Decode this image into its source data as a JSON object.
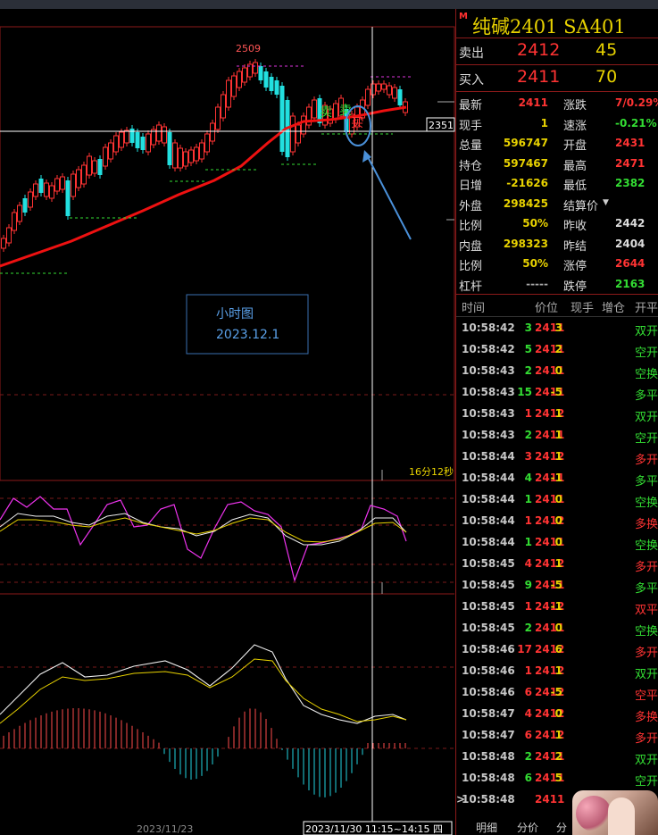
{
  "instrument": {
    "marker": "M",
    "name": "纯碱2401",
    "code": "SA401"
  },
  "order_book": [
    {
      "label": "卖出",
      "price": "2412",
      "volume": "45"
    },
    {
      "label": "买入",
      "price": "2411",
      "volume": "70"
    }
  ],
  "quote": [
    {
      "l1": "最新",
      "v1": "2411",
      "c1": "#ff3333",
      "l2": "涨跌",
      "v2": "7/0.29%",
      "c2": "#ff3333"
    },
    {
      "l1": "现手",
      "v1": "1",
      "c1": "#e8d200",
      "l2": "速涨",
      "v2": "-0.21%",
      "c2": "#33dd33"
    },
    {
      "l1": "总量",
      "v1": "596747",
      "c1": "#e8d200",
      "l2": "开盘",
      "v2": "2431",
      "c2": "#ff3333"
    },
    {
      "l1": "持仓",
      "v1": "597467",
      "c1": "#e8d200",
      "l2": "最高",
      "v2": "2471",
      "c2": "#ff3333"
    },
    {
      "l1": "日增",
      "v1": "-21626",
      "c1": "#e8d200",
      "l2": "最低",
      "v2": "2382",
      "c2": "#33dd33"
    },
    {
      "l1": "外盘",
      "v1": "298425",
      "c1": "#e8d200",
      "l2": "结算价",
      "v2": "",
      "c2": "#ddd"
    },
    {
      "l1": "比例",
      "v1": "50%",
      "c1": "#e8d200",
      "l2": "昨收",
      "v2": "2442",
      "c2": "#dddddd"
    },
    {
      "l1": "内盘",
      "v1": "298323",
      "c1": "#e8d200",
      "l2": "昨结",
      "v2": "2404",
      "c2": "#dddddd"
    },
    {
      "l1": "比例",
      "v1": "50%",
      "c1": "#e8d200",
      "l2": "涨停",
      "v2": "2644",
      "c2": "#ff3333"
    },
    {
      "l1": "杠杆",
      "v1": "-----",
      "c1": "#aaaaaa",
      "l2": "跌停",
      "v2": "2163",
      "c2": "#33dd33"
    }
  ],
  "ticks_header": [
    "时间",
    "价位",
    "现手",
    "增仓",
    "开平"
  ],
  "ticks": [
    {
      "time": "10:58:42",
      "price": "2411",
      "vol": "3",
      "chg": "3",
      "type": "双开"
    },
    {
      "time": "10:58:42",
      "price": "2411",
      "vol": "5",
      "chg": "2",
      "type": "空开"
    },
    {
      "time": "10:58:43",
      "price": "2411",
      "vol": "2",
      "chg": "0",
      "type": "空换"
    },
    {
      "time": "10:58:43",
      "price": "2411",
      "vol": "15",
      "chg": "-5",
      "type": "多平"
    },
    {
      "time": "10:58:43",
      "price": "2412",
      "vol": "1",
      "chg": "1",
      "type": "双开"
    },
    {
      "time": "10:58:43",
      "price": "2411",
      "vol": "2",
      "chg": "1",
      "type": "空开"
    },
    {
      "time": "10:58:44",
      "price": "2412",
      "vol": "3",
      "chg": "1",
      "type": "多开"
    },
    {
      "time": "10:58:44",
      "price": "2411",
      "vol": "4",
      "chg": "-1",
      "type": "多平"
    },
    {
      "time": "10:58:44",
      "price": "2411",
      "vol": "1",
      "chg": "0",
      "type": "空换"
    },
    {
      "time": "10:58:44",
      "price": "2412",
      "vol": "1",
      "chg": "0",
      "type": "多换"
    },
    {
      "time": "10:58:44",
      "price": "2411",
      "vol": "1",
      "chg": "0",
      "type": "空换"
    },
    {
      "time": "10:58:45",
      "price": "2412",
      "vol": "4",
      "chg": "1",
      "type": "多开"
    },
    {
      "time": "10:58:45",
      "price": "2411",
      "vol": "9",
      "chg": "-5",
      "type": "多平"
    },
    {
      "time": "10:58:45",
      "price": "2412",
      "vol": "1",
      "chg": "-1",
      "type": "双平"
    },
    {
      "time": "10:58:45",
      "price": "2411",
      "vol": "2",
      "chg": "0",
      "type": "空换"
    },
    {
      "time": "10:58:46",
      "price": "2412",
      "vol": "17",
      "chg": "6",
      "type": "多开"
    },
    {
      "time": "10:58:46",
      "price": "2412",
      "vol": "1",
      "chg": "1",
      "type": "双开"
    },
    {
      "time": "10:58:46",
      "price": "2412",
      "vol": "6",
      "chg": "-5",
      "type": "空平"
    },
    {
      "time": "10:58:47",
      "price": "2412",
      "vol": "4",
      "chg": "0",
      "type": "多换"
    },
    {
      "time": "10:58:47",
      "price": "2412",
      "vol": "6",
      "chg": "1",
      "type": "多开"
    },
    {
      "time": "10:58:48",
      "price": "2411",
      "vol": "2",
      "chg": "2",
      "type": "双开"
    },
    {
      "time": "10:58:48",
      "price": "2411",
      "vol": "6",
      "chg": "5",
      "type": "空开"
    },
    {
      "time": "10:58:48",
      "price": "2411",
      "vol": "",
      "chg": "",
      "type": ""
    }
  ],
  "tabs": [
    "明细",
    "分价",
    "分"
  ],
  "chart": {
    "high_label": "2509",
    "price_tag": "2351",
    "annotation_title": "小时图",
    "annotation_date": "2023.12.1",
    "countdown": "16分12秒",
    "date_left": "2023/11/23",
    "crosshair_date": "2023/11/30 11:15~14:15 四",
    "signals": [
      "卖",
      "卖",
      "买"
    ]
  },
  "colors": {
    "up": "#ff3333",
    "down": "#33dd33",
    "price_red": "#ff3333",
    "volume_yellow": "#e8d200",
    "border": "#8b1a1a",
    "arrow": "#4a90d9"
  }
}
